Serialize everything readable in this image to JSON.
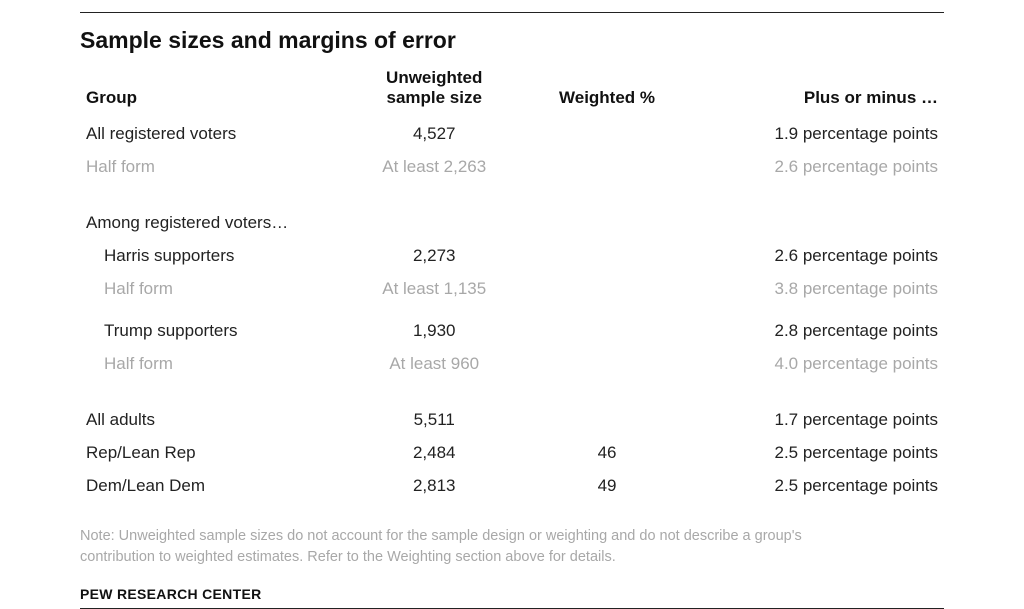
{
  "title": "Sample sizes and margins of error",
  "columns": {
    "group": "Group",
    "sample": "Unweighted\nsample size",
    "weighted": "Weighted %",
    "moe": "Plus or minus …"
  },
  "rows": {
    "r0": {
      "group": "All registered voters",
      "sample": "4,527",
      "weighted": "",
      "moe": "1.9 percentage points"
    },
    "r1": {
      "group": "Half form",
      "sample": "At least 2,263",
      "weighted": "",
      "moe": "2.6 percentage points"
    },
    "s1": {
      "group": "Among registered voters…"
    },
    "r2": {
      "group": "Harris supporters",
      "sample": "2,273",
      "weighted": "",
      "moe": "2.6 percentage points"
    },
    "r3": {
      "group": "Half form",
      "sample": "At least 1,135",
      "weighted": "",
      "moe": "3.8 percentage points"
    },
    "r4": {
      "group": "Trump supporters",
      "sample": "1,930",
      "weighted": "",
      "moe": "2.8 percentage points"
    },
    "r5": {
      "group": "Half form",
      "sample": "At least 960",
      "weighted": "",
      "moe": "4.0 percentage points"
    },
    "r6": {
      "group": "All adults",
      "sample": "5,511",
      "weighted": "",
      "moe": "1.7 percentage points"
    },
    "r7": {
      "group": "Rep/Lean Rep",
      "sample": "2,484",
      "weighted": "46",
      "moe": "2.5 percentage points"
    },
    "r8": {
      "group": "Dem/Lean Dem",
      "sample": "2,813",
      "weighted": "49",
      "moe": "2.5 percentage points"
    }
  },
  "note": "Note: Unweighted sample sizes do not account for the sample design or weighting and do not describe a group's contribution to weighted estimates. Refer to the Weighting section above for details.",
  "attribution": "PEW RESEARCH CENTER",
  "colors": {
    "text": "#222222",
    "muted": "#a8a8a8",
    "rule": "#222222",
    "background": "#ffffff"
  },
  "typography": {
    "title_fontsize": 23,
    "header_fontsize": 17,
    "cell_fontsize": 17,
    "note_fontsize": 14.5,
    "attribution_fontsize": 14
  },
  "table": {
    "column_widths_pct": [
      30,
      22,
      18,
      30
    ],
    "column_align": [
      "left",
      "center",
      "center",
      "right"
    ]
  }
}
